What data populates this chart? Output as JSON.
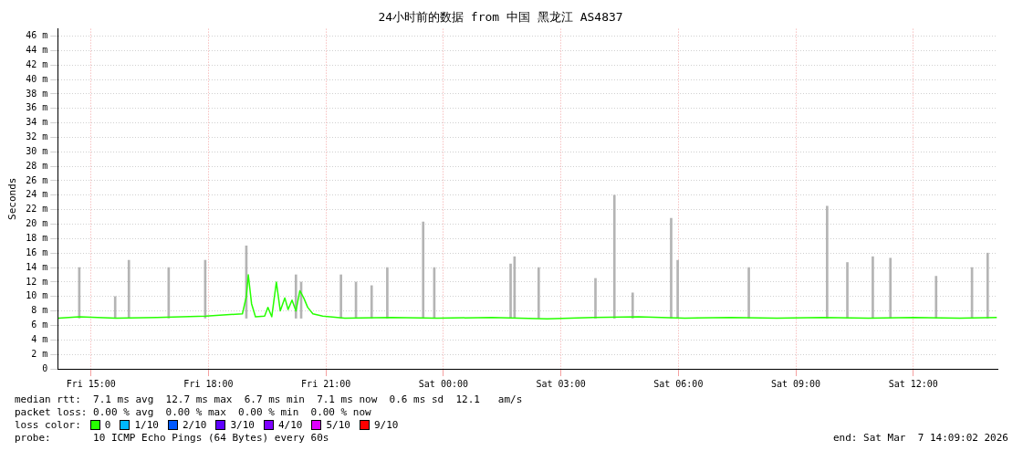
{
  "chart_data": {
    "type": "line",
    "title": "24小时前的数据 from 中国 黑龙江 AS4837",
    "ylabel": "Seconds",
    "xlim": [
      "2026-03-06T14:09",
      "2026-03-07T14:09"
    ],
    "xticks": [
      {
        "value": "2026-03-06T15:00",
        "label": "Fri 15:00"
      },
      {
        "value": "2026-03-06T18:00",
        "label": "Fri 18:00"
      },
      {
        "value": "2026-03-06T21:00",
        "label": "Fri 21:00"
      },
      {
        "value": "2026-03-07T00:00",
        "label": "Sat 00:00"
      },
      {
        "value": "2026-03-07T03:00",
        "label": "Sat 03:00"
      },
      {
        "value": "2026-03-07T06:00",
        "label": "Sat 06:00"
      },
      {
        "value": "2026-03-07T09:00",
        "label": "Sat 09:00"
      },
      {
        "value": "2026-03-07T12:00",
        "label": "Sat 12:00"
      }
    ],
    "ylim": [
      0,
      47
    ],
    "yticks": [
      {
        "value": 0,
        "label": "0"
      },
      {
        "value": 2,
        "label": "2 m"
      },
      {
        "value": 4,
        "label": "4 m"
      },
      {
        "value": 6,
        "label": "6 m"
      },
      {
        "value": 8,
        "label": "8 m"
      },
      {
        "value": 10,
        "label": "10 m"
      },
      {
        "value": 12,
        "label": "12 m"
      },
      {
        "value": 14,
        "label": "14 m"
      },
      {
        "value": 16,
        "label": "16 m"
      },
      {
        "value": 18,
        "label": "18 m"
      },
      {
        "value": 20,
        "label": "20 m"
      },
      {
        "value": 22,
        "label": "22 m"
      },
      {
        "value": 24,
        "label": "24 m"
      },
      {
        "value": 26,
        "label": "26 m"
      },
      {
        "value": 28,
        "label": "28 m"
      },
      {
        "value": 30,
        "label": "30 m"
      },
      {
        "value": 32,
        "label": "32 m"
      },
      {
        "value": 34,
        "label": "34 m"
      },
      {
        "value": 36,
        "label": "36 m"
      },
      {
        "value": 38,
        "label": "38 m"
      },
      {
        "value": 40,
        "label": "40 m"
      },
      {
        "value": 42,
        "label": "42 m"
      },
      {
        "value": 44,
        "label": "44 m"
      },
      {
        "value": 46,
        "label": "46 m"
      }
    ],
    "grid": true,
    "legend": "bottom",
    "legend_title": "loss color:",
    "marker": "none",
    "line_style": "solid",
    "series": [
      {
        "type": "bar",
        "color": "#b4b4b4",
        "x": [
          "2026-03-06T14:42",
          "2026-03-06T15:37",
          "2026-03-06T15:58",
          "2026-03-06T16:59",
          "2026-03-06T17:55",
          "2026-03-06T18:58",
          "2026-03-06T20:14",
          "2026-03-06T20:22",
          "2026-03-06T21:23",
          "2026-03-06T21:46",
          "2026-03-06T22:10",
          "2026-03-06T22:34",
          "2026-03-06T23:29",
          "2026-03-06T23:46",
          "2026-03-07T01:43",
          "2026-03-07T01:49",
          "2026-03-07T02:26",
          "2026-03-07T03:53",
          "2026-03-07T04:22",
          "2026-03-07T04:50",
          "2026-03-07T05:49",
          "2026-03-07T05:59",
          "2026-03-07T07:48",
          "2026-03-07T09:48",
          "2026-03-07T10:19",
          "2026-03-07T10:58",
          "2026-03-07T11:25",
          "2026-03-07T12:35",
          "2026-03-07T13:30",
          "2026-03-07T13:54"
        ],
        "base": [
          7,
          7,
          7,
          7,
          7,
          7,
          7,
          7,
          7,
          7,
          7,
          7,
          7,
          7,
          7,
          7,
          7,
          7,
          7,
          7,
          7,
          7,
          7,
          7,
          7,
          7,
          7,
          7,
          7,
          7
        ],
        "values": [
          7,
          3,
          8,
          7,
          8,
          10,
          6,
          5,
          6,
          5,
          4.5,
          7,
          13.3,
          7,
          7.5,
          8.5,
          7,
          5.5,
          17,
          3.5,
          13.8,
          8,
          7,
          15.5,
          7.7,
          8.5,
          8.3,
          5.8,
          7,
          9
        ]
      },
      {
        "name": "0",
        "color": "#26ff00",
        "x": [
          "2026-03-06T14:10",
          "2026-03-06T14:42",
          "2026-03-06T15:38",
          "2026-03-06T16:41",
          "2026-03-06T17:56",
          "2026-03-06T18:52",
          "2026-03-06T18:58",
          "2026-03-06T19:01",
          "2026-03-06T19:06",
          "2026-03-06T19:12",
          "2026-03-06T19:26",
          "2026-03-06T19:31",
          "2026-03-06T19:37",
          "2026-03-06T19:44",
          "2026-03-06T19:50",
          "2026-03-06T19:57",
          "2026-03-06T20:02",
          "2026-03-06T20:08",
          "2026-03-06T20:14",
          "2026-03-06T20:20",
          "2026-03-06T20:26",
          "2026-03-06T20:32",
          "2026-03-06T20:40",
          "2026-03-06T20:55",
          "2026-03-06T21:29",
          "2026-03-06T22:40",
          "2026-03-06T23:50",
          "2026-03-07T01:14",
          "2026-03-07T02:39",
          "2026-03-07T03:49",
          "2026-03-07T04:59",
          "2026-03-07T06:10",
          "2026-03-07T07:20",
          "2026-03-07T08:31",
          "2026-03-07T09:41",
          "2026-03-07T10:51",
          "2026-03-07T12:01",
          "2026-03-07T13:11",
          "2026-03-07T14:08"
        ],
        "values": [
          7.0,
          7.2,
          7.0,
          7.1,
          7.3,
          7.6,
          10,
          13,
          9,
          7.2,
          7.3,
          8.5,
          7.2,
          12,
          8,
          9.8,
          8.2,
          9.5,
          8,
          10.8,
          9.8,
          8.5,
          7.6,
          7.3,
          7.0,
          7.1,
          7.0,
          7.1,
          6.9,
          7.1,
          7.2,
          7.0,
          7.1,
          7.0,
          7.1,
          7.0,
          7.1,
          7.0,
          7.1
        ]
      },
      {
        "name": "1/10",
        "color": "#00b8ff"
      },
      {
        "name": "2/10",
        "color": "#0059ff"
      },
      {
        "name": "3/10",
        "color": "#5e00ff"
      },
      {
        "name": "4/10",
        "color": "#7e00ff"
      },
      {
        "name": "5/10",
        "color": "#dd00ff"
      },
      {
        "name": "9/10",
        "color": "#ff0000"
      }
    ],
    "annotations": [
      "median rtt:  7.1 ms avg  12.7 ms max  6.7 ms min  7.1 ms now  0.6 ms sd  12.1   am/s",
      "packet loss: 0.00 % avg  0.00 % max  0.00 % min  0.00 % now",
      "probe:       10 ICMP Echo Pings (64 Bytes) every 60s",
      "end: Sat Mar  7 14:09:02 2026"
    ]
  }
}
